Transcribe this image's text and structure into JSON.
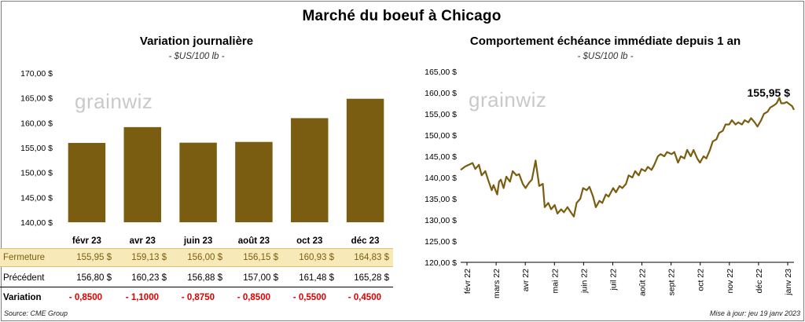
{
  "main_title": "Marché du boeuf à Chicago",
  "footer": {
    "source": "Source: CME Group",
    "updated": "Mise à jour: jeu 19 janv 2023"
  },
  "watermark": "grainwiz",
  "colors": {
    "bar": "#7a5d10",
    "line": "#7a5d10",
    "closing_row_bg": "#f8eab8",
    "negative": "#e00000"
  },
  "table": {
    "row_labels": {
      "close": "Fermeture",
      "previous": "Précédent",
      "change": "Variation"
    },
    "close": [
      "155,95  $",
      "159,13  $",
      "156,00  $",
      "156,15  $",
      "160,93  $",
      "164,83  $"
    ],
    "previous": [
      "156,80  $",
      "160,23  $",
      "156,88  $",
      "157,00  $",
      "161,48  $",
      "165,28  $"
    ],
    "change": [
      "- 0,8500",
      "- 1,1000",
      "- 0,8750",
      "- 0,8500",
      "- 0,5500",
      "- 0,4500"
    ]
  },
  "chart_data": [
    {
      "type": "bar",
      "title": "Variation  journalière",
      "subtitle": "- $US/100 lb -",
      "categories": [
        "févr 23",
        "avr 23",
        "juin 23",
        "août 23",
        "oct 23",
        "déc 23"
      ],
      "values": [
        155.95,
        159.13,
        156.0,
        156.15,
        160.93,
        164.83
      ],
      "ylim": [
        140,
        170
      ],
      "yticks": [
        140,
        145,
        150,
        155,
        160,
        165,
        170
      ],
      "ytick_labels": [
        "140,00 $",
        "145,00 $",
        "150,00 $",
        "155,00 $",
        "160,00 $",
        "165,00 $",
        "170,00 $"
      ],
      "grid": false
    },
    {
      "type": "line",
      "title": "Comportement  échéance immédiate depuis 1 an",
      "subtitle": "- $US/100 lb -",
      "x_start": "2022-01-19",
      "x_end": "2023-01-19",
      "xtick_labels": [
        "févr 22",
        "mars 22",
        "avr 22",
        "mai 22",
        "juin 22",
        "juil 22",
        "août 22",
        "sept 22",
        "oct 22",
        "nov 22",
        "déc 22",
        "janv 23"
      ],
      "ylim": [
        120,
        165
      ],
      "yticks": [
        120,
        125,
        130,
        135,
        140,
        145,
        150,
        155,
        160,
        165
      ],
      "ytick_labels": [
        "120,00 $",
        "125,00 $",
        "130,00 $",
        "135,00 $",
        "140,00 $",
        "145,00 $",
        "150,00 $",
        "155,00 $",
        "160,00 $",
        "165,00 $"
      ],
      "last_value_label": "155,95 $",
      "points": [
        [
          "2022-01-19",
          141.8
        ],
        [
          "2022-01-24",
          142.6
        ],
        [
          "2022-01-28",
          143.0
        ],
        [
          "2022-02-01",
          143.4
        ],
        [
          "2022-02-04",
          142.0
        ],
        [
          "2022-02-08",
          143.0
        ],
        [
          "2022-02-11",
          140.5
        ],
        [
          "2022-02-15",
          141.5
        ],
        [
          "2022-02-18",
          139.5
        ],
        [
          "2022-02-22",
          137.0
        ],
        [
          "2022-02-24",
          138.2
        ],
        [
          "2022-02-28",
          136.0
        ],
        [
          "2022-03-02",
          139.0
        ],
        [
          "2022-03-04",
          139.5
        ],
        [
          "2022-03-07",
          137.5
        ],
        [
          "2022-03-10",
          140.2
        ],
        [
          "2022-03-14",
          139.0
        ],
        [
          "2022-03-17",
          141.5
        ],
        [
          "2022-03-21",
          140.5
        ],
        [
          "2022-03-24",
          140.8
        ],
        [
          "2022-03-28",
          138.5
        ],
        [
          "2022-03-31",
          137.5
        ],
        [
          "2022-04-04",
          138.8
        ],
        [
          "2022-04-07",
          139.5
        ],
        [
          "2022-04-11",
          144.0
        ],
        [
          "2022-04-13",
          141.0
        ],
        [
          "2022-04-15",
          138.0
        ],
        [
          "2022-04-19",
          138.5
        ],
        [
          "2022-04-21",
          133.0
        ],
        [
          "2022-04-25",
          134.0
        ],
        [
          "2022-04-28",
          132.5
        ],
        [
          "2022-05-02",
          133.5
        ],
        [
          "2022-05-05",
          131.5
        ],
        [
          "2022-05-09",
          132.5
        ],
        [
          "2022-05-12",
          131.8
        ],
        [
          "2022-05-16",
          133.0
        ],
        [
          "2022-05-19",
          132.0
        ],
        [
          "2022-05-23",
          130.8
        ],
        [
          "2022-05-26",
          134.0
        ],
        [
          "2022-05-30",
          135.0
        ],
        [
          "2022-06-02",
          137.5
        ],
        [
          "2022-06-06",
          137.0
        ],
        [
          "2022-06-09",
          137.8
        ],
        [
          "2022-06-13",
          135.5
        ],
        [
          "2022-06-16",
          133.0
        ],
        [
          "2022-06-20",
          134.5
        ],
        [
          "2022-06-23",
          134.0
        ],
        [
          "2022-06-27",
          136.0
        ],
        [
          "2022-06-30",
          135.5
        ],
        [
          "2022-07-05",
          137.5
        ],
        [
          "2022-07-08",
          136.5
        ],
        [
          "2022-07-12",
          138.0
        ],
        [
          "2022-07-15",
          137.5
        ],
        [
          "2022-07-19",
          138.5
        ],
        [
          "2022-07-22",
          140.5
        ],
        [
          "2022-07-26",
          140.0
        ],
        [
          "2022-07-29",
          141.5
        ],
        [
          "2022-08-02",
          140.5
        ],
        [
          "2022-08-05",
          142.0
        ],
        [
          "2022-08-09",
          141.5
        ],
        [
          "2022-08-12",
          142.5
        ],
        [
          "2022-08-16",
          141.8
        ],
        [
          "2022-08-19",
          143.0
        ],
        [
          "2022-08-23",
          145.0
        ],
        [
          "2022-08-26",
          145.5
        ],
        [
          "2022-08-30",
          145.0
        ],
        [
          "2022-09-02",
          146.0
        ],
        [
          "2022-09-07",
          145.5
        ],
        [
          "2022-09-10",
          146.0
        ],
        [
          "2022-09-14",
          143.5
        ],
        [
          "2022-09-17",
          145.0
        ],
        [
          "2022-09-21",
          144.5
        ],
        [
          "2022-09-24",
          146.5
        ],
        [
          "2022-09-28",
          145.0
        ],
        [
          "2022-10-01",
          146.5
        ],
        [
          "2022-10-05",
          144.5
        ],
        [
          "2022-10-08",
          143.5
        ],
        [
          "2022-10-12",
          145.0
        ],
        [
          "2022-10-15",
          144.5
        ],
        [
          "2022-10-19",
          146.5
        ],
        [
          "2022-10-22",
          148.5
        ],
        [
          "2022-10-26",
          149.0
        ],
        [
          "2022-10-29",
          150.5
        ],
        [
          "2022-11-02",
          151.0
        ],
        [
          "2022-11-05",
          152.5
        ],
        [
          "2022-11-09",
          152.5
        ],
        [
          "2022-11-12",
          153.5
        ],
        [
          "2022-11-16",
          152.5
        ],
        [
          "2022-11-19",
          153.0
        ],
        [
          "2022-11-23",
          152.5
        ],
        [
          "2022-11-26",
          153.5
        ],
        [
          "2022-11-30",
          153.0
        ],
        [
          "2022-12-03",
          154.0
        ],
        [
          "2022-12-07",
          153.0
        ],
        [
          "2022-12-10",
          152.0
        ],
        [
          "2022-12-14",
          153.5
        ],
        [
          "2022-12-17",
          155.0
        ],
        [
          "2022-12-21",
          155.5
        ],
        [
          "2022-12-24",
          156.5
        ],
        [
          "2022-12-28",
          157.0
        ],
        [
          "2022-12-31",
          157.5
        ],
        [
          "2023-01-03",
          158.8
        ],
        [
          "2023-01-05",
          157.5
        ],
        [
          "2023-01-08",
          157.5
        ],
        [
          "2023-01-11",
          157.8
        ],
        [
          "2023-01-14",
          157.3
        ],
        [
          "2023-01-17",
          156.8
        ],
        [
          "2023-01-19",
          155.95
        ]
      ]
    }
  ]
}
